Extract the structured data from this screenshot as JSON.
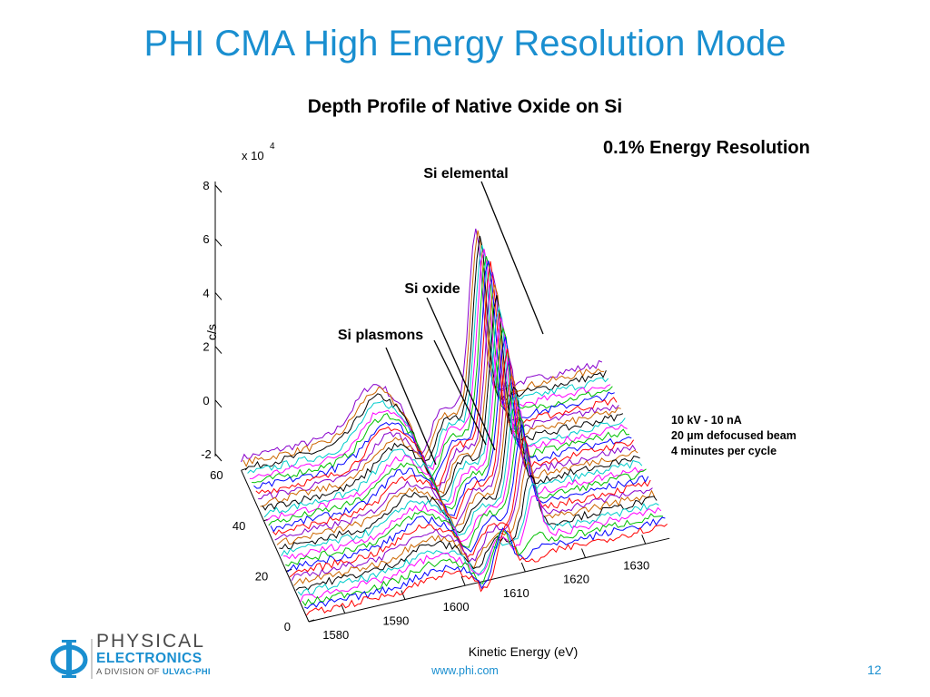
{
  "slide": {
    "title": "PHI CMA High Energy Resolution Mode",
    "resolution_label": "0.1% Energy Resolution",
    "notes": [
      "10 kV - 10 nA",
      "20 µm defocused beam",
      "4 minutes  per cycle"
    ],
    "page_number": "12",
    "footer_url": "www.phi.com",
    "logo": {
      "line1": "PHYSICAL",
      "line2": "ELECTRONICS",
      "line3_prefix": "A DIVISION OF ",
      "line3_brand": "ULVAC-PHI",
      "brand_color": "#1a8fd0"
    }
  },
  "chart_data": {
    "type": "3d-waterfall-line",
    "title": "Depth Profile of Native Oxide on Si",
    "xlabel": "Kinetic Energy (eV)",
    "ylabel": "",
    "zlabel": "c/s",
    "z_multiplier_label": "x 10",
    "z_multiplier_exponent": "4",
    "x_ticks": [
      1580,
      1590,
      1600,
      1610,
      1620,
      1630
    ],
    "y_ticks": [
      0,
      20,
      40,
      60
    ],
    "z_ticks": [
      -2,
      0,
      2,
      4,
      6,
      8
    ],
    "xlim": [
      1574,
      1634
    ],
    "ylim": [
      0,
      60
    ],
    "zlim": [
      -2,
      8
    ],
    "cycles": 32,
    "peak_energies_eV": {
      "si_elemental": 1613,
      "si_oxide": 1607,
      "si_plasmons": 1596
    },
    "annotations": [
      "Si elemental",
      "Si oxide",
      "Si plasmons"
    ],
    "series_colors": [
      "#ff0000",
      "#0000ff",
      "#00c000",
      "#ff00ff",
      "#00cccc",
      "#000000",
      "#cc6600",
      "#8800cc"
    ]
  }
}
